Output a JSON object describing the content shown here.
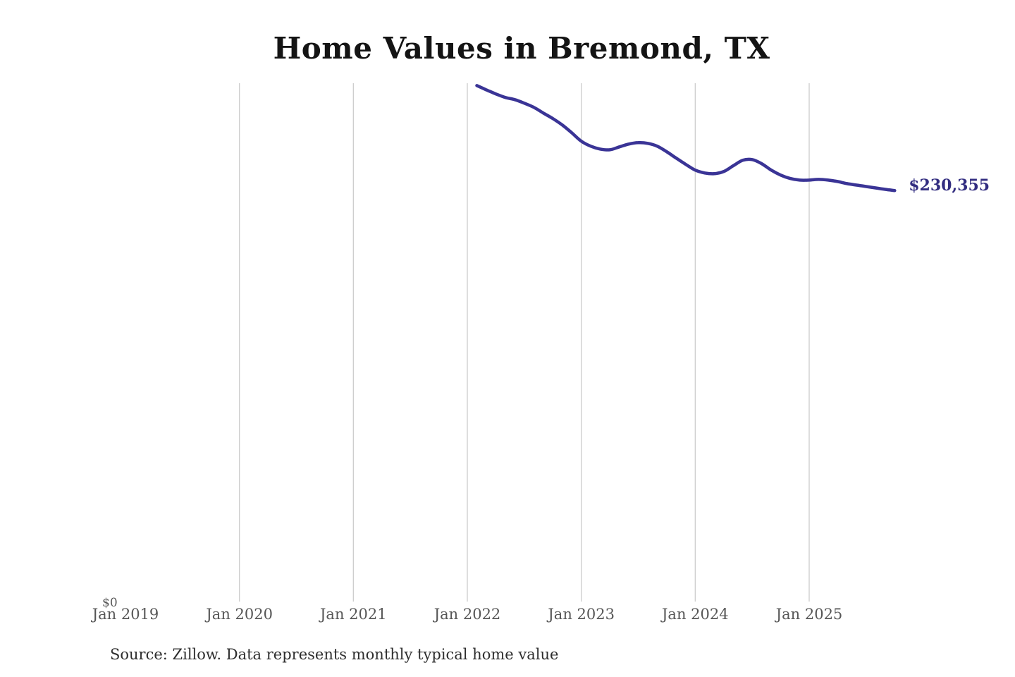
{
  "title": "Home Values in Bremond, TX",
  "source_note": "Source: Zillow. Data represents monthly typical home value",
  "end_label": "$230,355",
  "colors": {
    "line": "#3a3496",
    "end_label": "#322d80",
    "gridline": "#c8c8c8",
    "axis_text": "#565656",
    "title_text": "#141414",
    "source_text": "#2e2e2e",
    "background": "#ffffff"
  },
  "chart_data": {
    "type": "line",
    "title": "Home Values in Bremond, TX",
    "xlabel": "",
    "ylabel": "",
    "legend": "none",
    "grid": "vertical-only",
    "x_axis": {
      "tick_labels": [
        "Jan 2019",
        "Jan 2020",
        "Jan 2021",
        "Jan 2022",
        "Jan 2023",
        "Jan 2024",
        "Jan 2025"
      ],
      "tick_month_indices": [
        0,
        12,
        24,
        36,
        48,
        60,
        72
      ],
      "gridline_month_indices": [
        12,
        24,
        36,
        48,
        60,
        72
      ],
      "months_span": 72
    },
    "y_axis": {
      "zero_label": "$0",
      "ylim": [
        0,
        290500
      ]
    },
    "series": [
      {
        "name": "Monthly typical home value",
        "unit": "USD",
        "first_month": "2022-02",
        "first_month_index": 37,
        "months": [
          "2022-02",
          "2022-03",
          "2022-04",
          "2022-05",
          "2022-06",
          "2022-07",
          "2022-08",
          "2022-09",
          "2022-10",
          "2022-11",
          "2022-12",
          "2023-01",
          "2023-02",
          "2023-03",
          "2023-04",
          "2023-05",
          "2023-06",
          "2023-07",
          "2023-08",
          "2023-09",
          "2023-10",
          "2023-11",
          "2023-12",
          "2024-01",
          "2024-02",
          "2024-03",
          "2024-04",
          "2024-05",
          "2024-06",
          "2024-07",
          "2024-08",
          "2024-09",
          "2024-10",
          "2024-11",
          "2024-12",
          "2025-01",
          "2025-02",
          "2025-03",
          "2025-04",
          "2025-05",
          "2025-06",
          "2025-07",
          "2025-08",
          "2025-09",
          "2025-10"
        ],
        "values": [
          289200,
          286800,
          284500,
          282500,
          281300,
          279300,
          277000,
          273800,
          270700,
          267100,
          262700,
          258000,
          255200,
          253600,
          253200,
          254800,
          256400,
          257200,
          256800,
          255200,
          252100,
          248500,
          245000,
          241800,
          240200,
          239800,
          241000,
          244200,
          247300,
          247700,
          245400,
          241800,
          239000,
          237100,
          236200,
          236200,
          236600,
          236200,
          235400,
          234200,
          233400,
          232600,
          231800,
          231000,
          230355
        ],
        "last_value": 230355,
        "last_value_label": "$230,355"
      }
    ],
    "annotations": [
      {
        "text": "$230,355",
        "position": "end-of-line"
      }
    ]
  }
}
